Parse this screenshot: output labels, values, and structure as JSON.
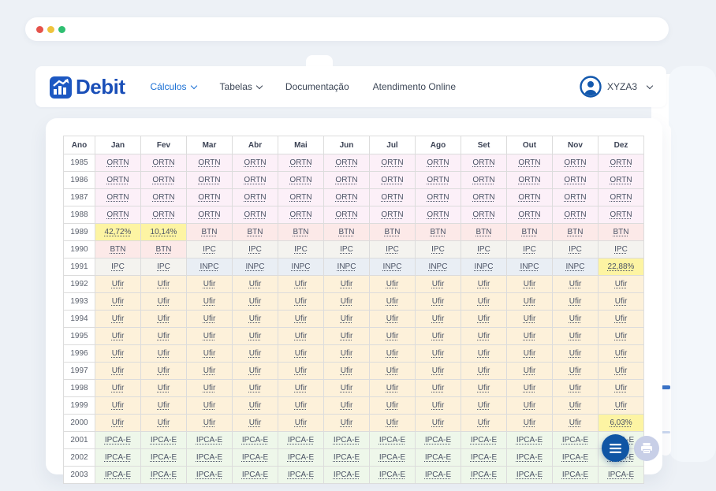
{
  "window": {
    "traffic_lights": [
      {
        "name": "close",
        "color": "#e5534b"
      },
      {
        "name": "minimize",
        "color": "#efc33d"
      },
      {
        "name": "zoom",
        "color": "#2fbf71"
      }
    ]
  },
  "header": {
    "brand": "Debit",
    "nav": [
      {
        "label": "Cálculos",
        "dropdown": true,
        "active": true
      },
      {
        "label": "Tabelas",
        "dropdown": true,
        "active": false
      },
      {
        "label": "Documentação",
        "dropdown": false,
        "active": false
      },
      {
        "label": "Atendimento Online",
        "dropdown": false,
        "active": false
      }
    ],
    "user": {
      "name": "XYZA3"
    }
  },
  "colors": {
    "brand_blue": "#1a4fb8",
    "nav_active_blue": "#1a6fd4",
    "fab_blue": "#0f55a4",
    "link_text": "#4c5466",
    "table_border": "#dcdcdc"
  },
  "index_colors": {
    "ORTN": "#fcf0f8",
    "BTN": "#fce9e8",
    "IPC": "#f4f3ef",
    "INPC": "#e9eef4",
    "Ufir": "#fdf1da",
    "IPCA-E": "#eef7ea",
    "percent": "#fdf4a3"
  },
  "table": {
    "columns": [
      "Ano",
      "Jan",
      "Fev",
      "Mar",
      "Abr",
      "Mai",
      "Jun",
      "Jul",
      "Ago",
      "Set",
      "Out",
      "Nov",
      "Dez"
    ],
    "rows": [
      {
        "year": "1985",
        "cells": [
          "ORTN",
          "ORTN",
          "ORTN",
          "ORTN",
          "ORTN",
          "ORTN",
          "ORTN",
          "ORTN",
          "ORTN",
          "ORTN",
          "ORTN",
          "ORTN"
        ]
      },
      {
        "year": "1986",
        "cells": [
          "ORTN",
          "ORTN",
          "ORTN",
          "ORTN",
          "ORTN",
          "ORTN",
          "ORTN",
          "ORTN",
          "ORTN",
          "ORTN",
          "ORTN",
          "ORTN"
        ]
      },
      {
        "year": "1987",
        "cells": [
          "ORTN",
          "ORTN",
          "ORTN",
          "ORTN",
          "ORTN",
          "ORTN",
          "ORTN",
          "ORTN",
          "ORTN",
          "ORTN",
          "ORTN",
          "ORTN"
        ]
      },
      {
        "year": "1988",
        "cells": [
          "ORTN",
          "ORTN",
          "ORTN",
          "ORTN",
          "ORTN",
          "ORTN",
          "ORTN",
          "ORTN",
          "ORTN",
          "ORTN",
          "ORTN",
          "ORTN"
        ]
      },
      {
        "year": "1989",
        "cells": [
          "42,72%",
          "10,14%",
          "BTN",
          "BTN",
          "BTN",
          "BTN",
          "BTN",
          "BTN",
          "BTN",
          "BTN",
          "BTN",
          "BTN"
        ]
      },
      {
        "year": "1990",
        "cells": [
          "BTN",
          "BTN",
          "IPC",
          "IPC",
          "IPC",
          "IPC",
          "IPC",
          "IPC",
          "IPC",
          "IPC",
          "IPC",
          "IPC"
        ]
      },
      {
        "year": "1991",
        "cells": [
          "IPC",
          "IPC",
          "INPC",
          "INPC",
          "INPC",
          "INPC",
          "INPC",
          "INPC",
          "INPC",
          "INPC",
          "INPC",
          "22,88%"
        ]
      },
      {
        "year": "1992",
        "cells": [
          "Ufir",
          "Ufir",
          "Ufir",
          "Ufir",
          "Ufir",
          "Ufir",
          "Ufir",
          "Ufir",
          "Ufir",
          "Ufir",
          "Ufir",
          "Ufir"
        ]
      },
      {
        "year": "1993",
        "cells": [
          "Ufir",
          "Ufir",
          "Ufir",
          "Ufir",
          "Ufir",
          "Ufir",
          "Ufir",
          "Ufir",
          "Ufir",
          "Ufir",
          "Ufir",
          "Ufir"
        ]
      },
      {
        "year": "1994",
        "cells": [
          "Ufir",
          "Ufir",
          "Ufir",
          "Ufir",
          "Ufir",
          "Ufir",
          "Ufir",
          "Ufir",
          "Ufir",
          "Ufir",
          "Ufir",
          "Ufir"
        ]
      },
      {
        "year": "1995",
        "cells": [
          "Ufir",
          "Ufir",
          "Ufir",
          "Ufir",
          "Ufir",
          "Ufir",
          "Ufir",
          "Ufir",
          "Ufir",
          "Ufir",
          "Ufir",
          "Ufir"
        ]
      },
      {
        "year": "1996",
        "cells": [
          "Ufir",
          "Ufir",
          "Ufir",
          "Ufir",
          "Ufir",
          "Ufir",
          "Ufir",
          "Ufir",
          "Ufir",
          "Ufir",
          "Ufir",
          "Ufir"
        ]
      },
      {
        "year": "1997",
        "cells": [
          "Ufir",
          "Ufir",
          "Ufir",
          "Ufir",
          "Ufir",
          "Ufir",
          "Ufir",
          "Ufir",
          "Ufir",
          "Ufir",
          "Ufir",
          "Ufir"
        ]
      },
      {
        "year": "1998",
        "cells": [
          "Ufir",
          "Ufir",
          "Ufir",
          "Ufir",
          "Ufir",
          "Ufir",
          "Ufir",
          "Ufir",
          "Ufir",
          "Ufir",
          "Ufir",
          "Ufir"
        ]
      },
      {
        "year": "1999",
        "cells": [
          "Ufir",
          "Ufir",
          "Ufir",
          "Ufir",
          "Ufir",
          "Ufir",
          "Ufir",
          "Ufir",
          "Ufir",
          "Ufir",
          "Ufir",
          "Ufir"
        ]
      },
      {
        "year": "2000",
        "cells": [
          "Ufir",
          "Ufir",
          "Ufir",
          "Ufir",
          "Ufir",
          "Ufir",
          "Ufir",
          "Ufir",
          "Ufir",
          "Ufir",
          "Ufir",
          "6,03%"
        ]
      },
      {
        "year": "2001",
        "cells": [
          "IPCA-E",
          "IPCA-E",
          "IPCA-E",
          "IPCA-E",
          "IPCA-E",
          "IPCA-E",
          "IPCA-E",
          "IPCA-E",
          "IPCA-E",
          "IPCA-E",
          "IPCA-E",
          "IPCA-E"
        ]
      },
      {
        "year": "2002",
        "cells": [
          "IPCA-E",
          "IPCA-E",
          "IPCA-E",
          "IPCA-E",
          "IPCA-E",
          "IPCA-E",
          "IPCA-E",
          "IPCA-E",
          "IPCA-E",
          "IPCA-E",
          "IPCA-E",
          "IPCA-E"
        ]
      },
      {
        "year": "2003",
        "cells": [
          "IPCA-E",
          "IPCA-E",
          "IPCA-E",
          "IPCA-E",
          "IPCA-E",
          "IPCA-E",
          "IPCA-E",
          "IPCA-E",
          "IPCA-E",
          "IPCA-E",
          "IPCA-E",
          "IPCA-E"
        ]
      }
    ]
  }
}
